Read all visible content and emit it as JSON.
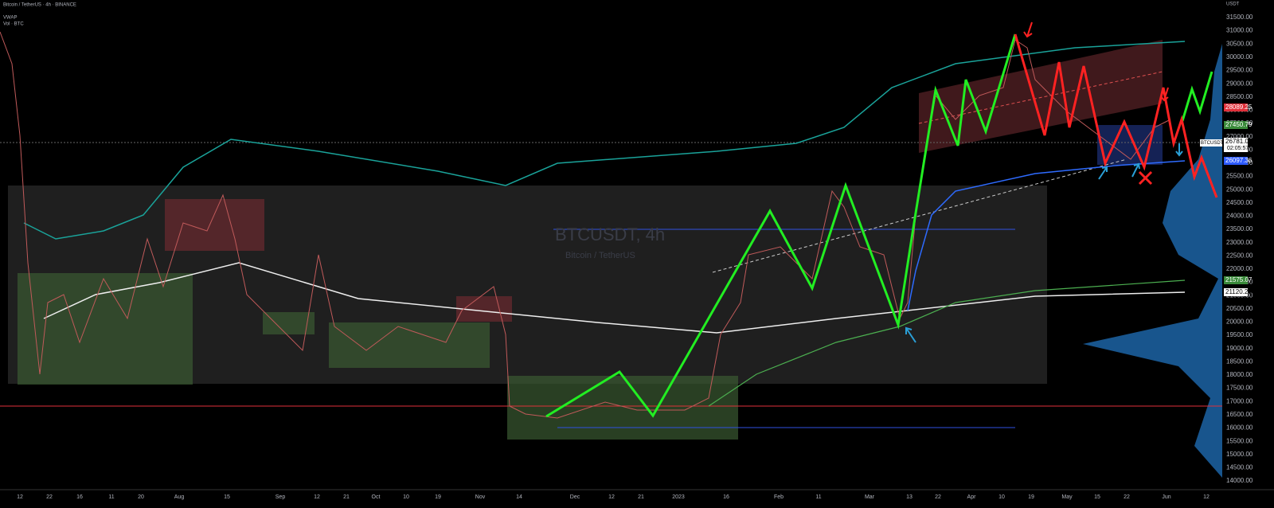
{
  "legend": {
    "line1": "Bitcoin / TetherUS · 4h · BINANCE",
    "line2": "VWAP",
    "line3": "Vol · BTC"
  },
  "watermark": {
    "symbol": "BTCUSDT, 4h",
    "name": "Bitcoin / TetherUS"
  },
  "currency": "USDT",
  "price_axis": [
    "31500.00",
    "31000.00",
    "30500.00",
    "30000.00",
    "29500.00",
    "29000.00",
    "28500.00",
    "28000.00",
    "27500.00",
    "27000.00",
    "26500.00",
    "26000.00",
    "25500.00",
    "25000.00",
    "24500.00",
    "24000.00",
    "23500.00",
    "23000.00",
    "22500.00",
    "22000.00",
    "21500.00",
    "21000.00",
    "20500.00",
    "20000.00",
    "19500.00",
    "19000.00",
    "18500.00",
    "18000.00",
    "17500.00",
    "17000.00",
    "16500.00",
    "16000.00",
    "15500.00",
    "15000.00",
    "14500.00",
    "14000.00"
  ],
  "price_tags": {
    "red": "28089.25",
    "green_upper": "27450.79",
    "symbol": "BTCUSDT",
    "last": "26781.02",
    "countdown": "02:05:57",
    "blue": "26097.36",
    "green_lower": "21575.07",
    "white": "21120.28"
  },
  "time_axis": [
    "12",
    "22",
    "16",
    "11",
    "20",
    "Aug",
    "15",
    "Sep",
    "12",
    "21",
    "Oct",
    "10",
    "19",
    "Nov",
    "14",
    "Dec",
    "12",
    "21",
    "2023",
    "16",
    "Feb",
    "11",
    "Mar",
    "13",
    "22",
    "Apr",
    "10",
    "19",
    "May",
    "15",
    "22",
    "Jun",
    "12"
  ]
}
